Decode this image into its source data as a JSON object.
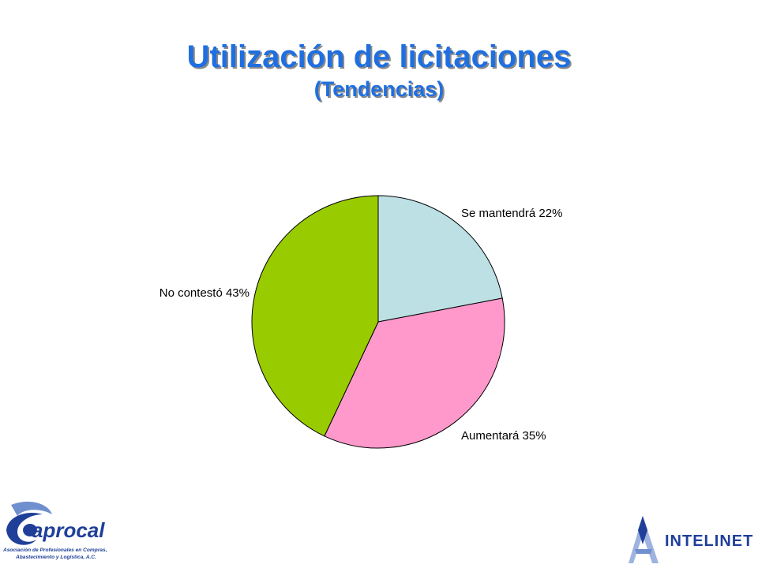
{
  "title": "Utilización de licitaciones",
  "subtitle": "(Tendencias)",
  "chart_data": {
    "type": "pie",
    "slices": [
      {
        "label": "Se mantendrá",
        "value": 22,
        "display": "Se mantendrá 22%",
        "color": "#bde0e4"
      },
      {
        "label": "Aumentará",
        "value": 35,
        "display": "Aumentará 35%",
        "color": "#ff99cc"
      },
      {
        "label": "No contestó",
        "value": 43,
        "display": "No contestó 43%",
        "color": "#99cc00"
      }
    ],
    "start": "12 o'clock",
    "direction": "clockwise"
  },
  "logos": {
    "left": {
      "name": "aprocal",
      "caption_line1": "Asociación de Profesionales en Compras,",
      "caption_line2": "Abastecimiento y Logística, A.C.",
      "color": "#1f3f99"
    },
    "right": {
      "name": "INTELINET",
      "color": "#1f3f99"
    }
  }
}
